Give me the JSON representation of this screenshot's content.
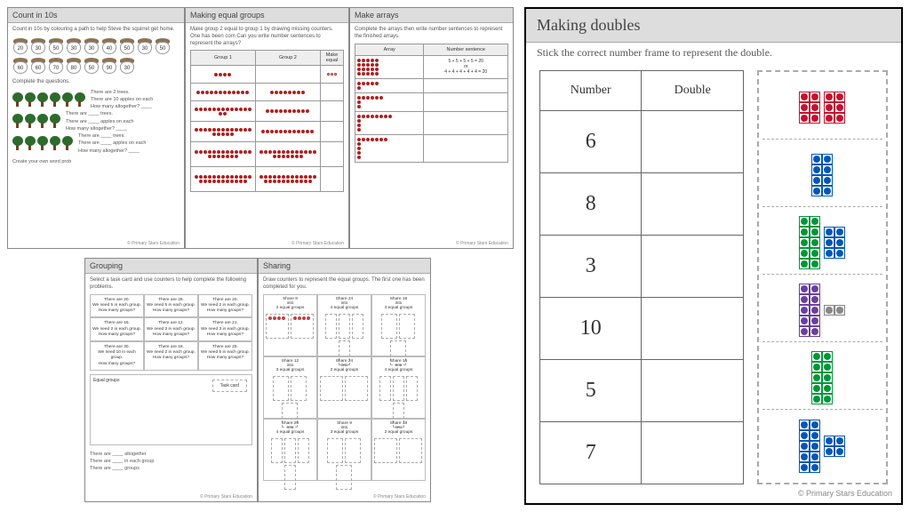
{
  "footer_text": "© Primary Stars Education",
  "count10s": {
    "title": "Count in 10s",
    "instruction": "Count in 10s by colouring a path to help Steve the squirrel get home.",
    "acorn_values": [
      "20",
      "30",
      "50",
      "30",
      "30",
      "40",
      "50",
      "30",
      "50",
      "60",
      "60",
      "70",
      "80",
      "50",
      "90",
      "30"
    ],
    "complete_label": "Complete the questions.",
    "q_lines": [
      "There are 2 trees.",
      "There are 10 apples on each",
      "How many altogether? ____",
      "There are ____ trees.",
      "There are ____ apples on each",
      "How many altogether? ____",
      "There are ____ trees.",
      "There are ____ apples on each",
      "How many altogether? ____",
      "Create your own word prob"
    ],
    "tree_rows": [
      6,
      4,
      5
    ],
    "colors": {
      "tree_foliage": "#2d6b2d",
      "tree_trunk": "#6b4423",
      "acorn_cap": "#8b7355"
    }
  },
  "equal_groups": {
    "title": "Making equal groups",
    "instruction": "Make group 2 equal to group 1 by drawing missing counters. One has been com\nCan you write number sentences to represent the arrays?",
    "headers": [
      "Group 1",
      "Group 2",
      "Make equal"
    ],
    "rows": [
      {
        "g1": 4,
        "g2": 0,
        "eq_outline": 3
      },
      {
        "g1": 12,
        "g2": 8,
        "eq_outline": 0
      },
      {
        "g1": 15,
        "g2": 10,
        "eq_outline": 0
      },
      {
        "g1": 18,
        "g2": 12,
        "eq_outline": 0
      },
      {
        "g1": 20,
        "g2": 20,
        "eq_outline": 0
      },
      {
        "g1": 24,
        "g2": 24,
        "eq_outline": 0
      }
    ],
    "dot_color": "#b02020"
  },
  "arrays": {
    "title": "Make arrays",
    "instruction": "Complete the arrays then write number sentences to represent the finished arrays.",
    "headers": [
      "Array",
      "Number sentence"
    ],
    "rows": [
      {
        "shape": [
          5,
          5,
          5,
          5
        ],
        "sentence": "5 + 5 + 5 + 5 = 20\nor\n4 + 4 + 4 + 4 + 4 = 20"
      },
      {
        "shape": [
          5,
          1
        ],
        "sentence": ""
      },
      {
        "shape": [
          6,
          1,
          1
        ],
        "sentence": ""
      },
      {
        "shape": [
          8,
          1,
          1,
          1
        ],
        "sentence": ""
      },
      {
        "shape": [
          7,
          1,
          1,
          1,
          1
        ],
        "sentence": ""
      }
    ],
    "dot_color": "#b02020"
  },
  "grouping": {
    "title": "Grouping",
    "instruction": "Select a task card and use counters to help complete the following problems.",
    "tasks": [
      "There are 20.\nWe need 5 in each group.\nHow many groups?",
      "There are 25.\nWe need 5 in each group.\nHow many groups?",
      "There are 20.\nWe need 2 in each group.\nHow many groups?",
      "There are 16.\nWe need 2 in each group.\nHow many groups?",
      "There are 12.\nWe need 3 in each group.\nHow many groups?",
      "There are 21.\nWe need 3 in each group.\nHow many groups?",
      "There are 30.\nWe need 10 in each group.\nHow many groups?",
      "There are 18.\nWe need 2 in each group.\nHow many groups?",
      "There are 25.\nWe need 5 in each group.\nHow many groups?"
    ],
    "eq_label": "Equal groups",
    "tc_label": "Task card",
    "bottom_lines": [
      "There are ____ altogether",
      "There are ____ in each group",
      "There are ____ groups"
    ]
  },
  "sharing": {
    "title": "Sharing",
    "instruction": "Draw counters to represent the equal groups.\nThe first one has been completed for you.",
    "cells": [
      {
        "label": "Share 8\ninto\n2 equal groups",
        "boxes": 2,
        "filled": 4
      },
      {
        "label": "Share 24\ninto\n4 equal groups",
        "boxes": 4,
        "filled": 0
      },
      {
        "label": "Share 18\ninto\n3 equal groups",
        "boxes": 3,
        "filled": 0
      },
      {
        "label": "Share 12\ninto\n3 equal groups",
        "boxes": 3,
        "filled": 0
      },
      {
        "label": "Share 24\ninto\n2 equal groups",
        "boxes": 2,
        "filled": 0
      },
      {
        "label": "Share 16\ninto\n4 equal groups",
        "boxes": 4,
        "filled": 0
      },
      {
        "label": "Share 20\ninto\n4 equal groups",
        "boxes": 4,
        "filled": 0
      },
      {
        "label": "Share 9\ninto\n3 equal groups",
        "boxes": 3,
        "filled": 0
      },
      {
        "label": "Share 18\ninto\n2 equal groups",
        "boxes": 2,
        "filled": 0
      }
    ],
    "dot_color": "#c04040"
  },
  "doubles": {
    "title": "Making doubles",
    "instruction": "Stick the correct number frame to represent the double.",
    "table_headers": [
      "Number",
      "Double"
    ],
    "numbers": [
      "6",
      "8",
      "3",
      "10",
      "5",
      "7"
    ],
    "frames": [
      {
        "pieces": [
          {
            "n": 6,
            "color": "#c8102e"
          },
          {
            "n": 6,
            "color": "#c8102e"
          }
        ]
      },
      {
        "pieces": [
          {
            "n": 8,
            "color": "#0057b8"
          }
        ]
      },
      {
        "pieces": [
          {
            "n": 10,
            "color": "#009639"
          },
          {
            "n": 6,
            "color": "#0057b8"
          }
        ]
      },
      {
        "pieces": [
          {
            "n": 10,
            "color": "#6b3fa0"
          },
          {
            "n": 2,
            "color": "#888"
          }
        ]
      },
      {
        "pieces": [
          {
            "n": 10,
            "color": "#009639"
          }
        ]
      },
      {
        "pieces": [
          {
            "n": 10,
            "color": "#0057b8"
          },
          {
            "n": 4,
            "color": "#0057b8"
          }
        ]
      }
    ]
  }
}
